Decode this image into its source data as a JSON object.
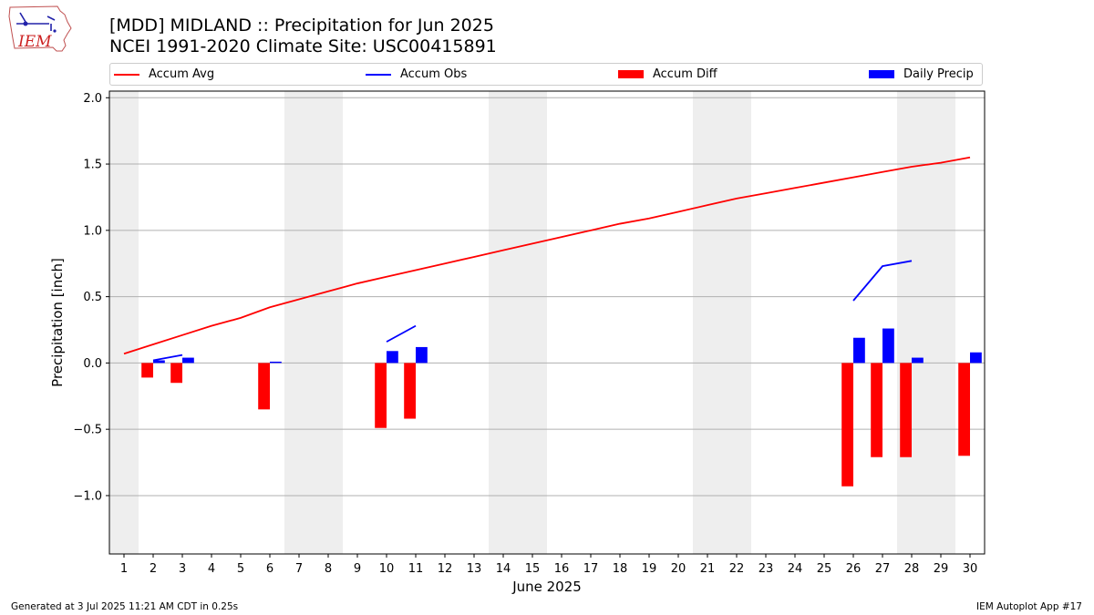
{
  "header": {
    "title_line1": "[MDD] MIDLAND :: Precipitation for Jun 2025",
    "title_line2": "NCEI 1991-2020 Climate Site: USC00415891",
    "logo_text": "IEM"
  },
  "legend": {
    "items": [
      {
        "label": "Accum Avg",
        "kind": "line",
        "color": "#ff0000"
      },
      {
        "label": "Accum Obs",
        "kind": "line",
        "color": "#0000ff"
      },
      {
        "label": "Accum Diff",
        "kind": "patch",
        "color": "#ff0000"
      },
      {
        "label": "Daily Precip",
        "kind": "patch",
        "color": "#0000ff"
      }
    ]
  },
  "footer": {
    "generated": "Generated at 3 Jul 2025 11:21 AM CDT in 0.25s",
    "app": "IEM Autoplot App #17"
  },
  "chart_data": {
    "type": "bar",
    "title": "[MDD] MIDLAND :: Precipitation for Jun 2025",
    "subtitle": "NCEI 1991-2020 Climate Site: USC00415891",
    "xlabel": "June 2025",
    "ylabel": "Precipitation [inch]",
    "ylim": [
      -1.44,
      2.05
    ],
    "xlim": [
      0.5,
      30.5
    ],
    "grid": true,
    "legend_position": "top",
    "yticks": [
      -1.0,
      -0.5,
      0.0,
      0.5,
      1.0,
      1.5,
      2.0
    ],
    "ytick_labels": [
      "−1.0",
      "−0.5",
      "0.0",
      "0.5",
      "1.0",
      "1.5",
      "2.0"
    ],
    "categories": [
      1,
      2,
      3,
      4,
      5,
      6,
      7,
      8,
      9,
      10,
      11,
      12,
      13,
      14,
      15,
      16,
      17,
      18,
      19,
      20,
      21,
      22,
      23,
      24,
      25,
      26,
      27,
      28,
      29,
      30
    ],
    "weekend_days": [
      1,
      7,
      8,
      14,
      15,
      21,
      22,
      28,
      29
    ],
    "colors": {
      "avg": "#ff0000",
      "obs": "#0000ff",
      "diff": "#ff0000",
      "daily": "#0000ff",
      "weekend": "#eeeeee",
      "grid": "#b0b0b0"
    },
    "series": [
      {
        "name": "Accum Avg",
        "kind": "line",
        "x": [
          1,
          2,
          3,
          4,
          5,
          6,
          7,
          8,
          9,
          10,
          11,
          12,
          13,
          14,
          15,
          16,
          17,
          18,
          19,
          20,
          21,
          22,
          23,
          24,
          25,
          26,
          27,
          28,
          29,
          30
        ],
        "values": [
          0.07,
          0.14,
          0.21,
          0.28,
          0.34,
          0.42,
          0.48,
          0.54,
          0.6,
          0.65,
          0.7,
          0.75,
          0.8,
          0.85,
          0.9,
          0.95,
          1.0,
          1.05,
          1.09,
          1.14,
          1.19,
          1.24,
          1.28,
          1.32,
          1.36,
          1.4,
          1.44,
          1.48,
          1.51,
          1.55
        ]
      },
      {
        "name": "Accum Obs",
        "kind": "line",
        "segments": [
          {
            "x": [
              2,
              3
            ],
            "values": [
              0.02,
              0.06
            ]
          },
          {
            "x": [
              10,
              11
            ],
            "values": [
              0.16,
              0.28
            ]
          },
          {
            "x": [
              26,
              27,
              28
            ],
            "values": [
              0.47,
              0.73,
              0.77
            ]
          }
        ]
      },
      {
        "name": "Accum Diff",
        "kind": "bar",
        "x": [
          2,
          3,
          6,
          10,
          11,
          26,
          27,
          28,
          30
        ],
        "values": [
          -0.11,
          -0.15,
          -0.35,
          -0.49,
          -0.42,
          -0.93,
          -0.71,
          -0.71,
          -0.7
        ]
      },
      {
        "name": "Daily Precip",
        "kind": "bar",
        "x": [
          2,
          3,
          6,
          10,
          11,
          26,
          27,
          28,
          30
        ],
        "values": [
          0.02,
          0.04,
          0.01,
          0.09,
          0.12,
          0.19,
          0.26,
          0.04,
          0.08
        ]
      }
    ]
  }
}
